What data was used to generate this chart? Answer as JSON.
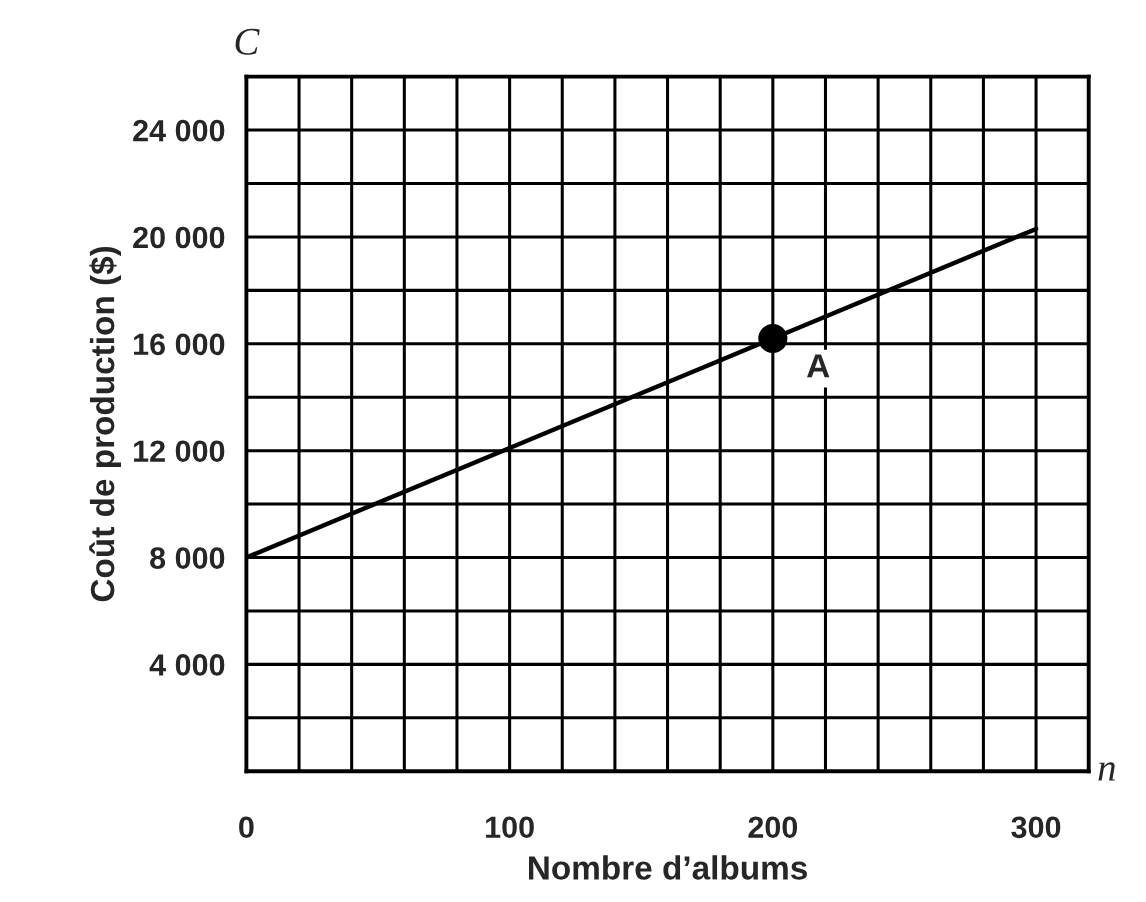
{
  "chart_data": {
    "type": "line",
    "xlabel": "Nombre d’albums",
    "ylabel": "Coût de production ($)",
    "annotations": [
      "C",
      "n"
    ],
    "series": [
      {
        "color": "#000000",
        "x": [
          0,
          100,
          200,
          300
        ],
        "values": [
          8000,
          12100,
          16200,
          20300
        ],
        "marker": "none"
      },
      {
        "type": "scatter",
        "name": "A",
        "color": "#000000",
        "x": [
          200
        ],
        "values": [
          16200
        ],
        "marker": "circle"
      }
    ],
    "xlim": [
      0,
      320
    ],
    "ylim": [
      0,
      26000
    ],
    "xticks": [
      0,
      {
        "value": 20,
        "label": null
      },
      {
        "value": 40,
        "label": null
      },
      {
        "value": 60,
        "label": null
      },
      {
        "value": 80,
        "label": null
      },
      100,
      {
        "value": 120,
        "label": null
      },
      {
        "value": 140,
        "label": null
      },
      {
        "value": 160,
        "label": null
      },
      {
        "value": 180,
        "label": null
      },
      200,
      {
        "value": 220,
        "label": null
      },
      {
        "value": 240,
        "label": null
      },
      {
        "value": 260,
        "label": null
      },
      {
        "value": 280,
        "label": null
      },
      300
    ],
    "yticks": [
      {
        "value": 2000,
        "label": null
      },
      {
        "value": 4000,
        "label": "4 000"
      },
      {
        "value": 6000,
        "label": null
      },
      {
        "value": 8000,
        "label": "8 000"
      },
      {
        "value": 10000,
        "label": null
      },
      {
        "value": 12000,
        "label": "12 000"
      },
      {
        "value": 14000,
        "label": null
      },
      {
        "value": 16000,
        "label": "16 000"
      },
      {
        "value": 18000,
        "label": null
      },
      {
        "value": 20000,
        "label": "20 000"
      },
      {
        "value": 22000,
        "label": null
      },
      {
        "value": 24000,
        "label": "24 000"
      }
    ],
    "grid": true,
    "legend": false
  }
}
